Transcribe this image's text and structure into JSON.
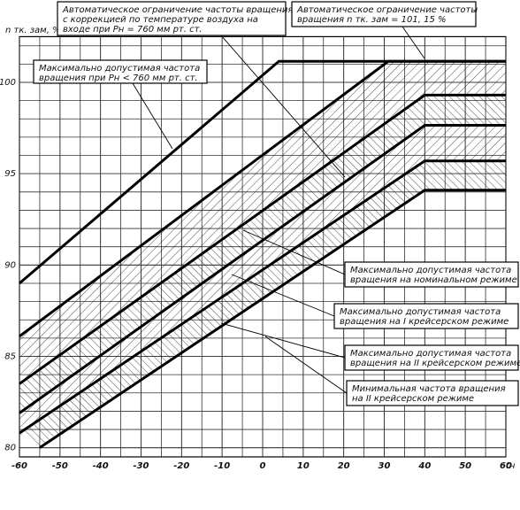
{
  "chart_data": {
    "type": "line",
    "y_label": "n тк. зам, %",
    "x_label": "tн",
    "xlim": [
      -60,
      60
    ],
    "ylim": [
      79.5,
      102.5
    ],
    "xticks": [
      -60,
      -50,
      -40,
      -30,
      -20,
      -10,
      0,
      10,
      20,
      30,
      40,
      50,
      60
    ],
    "yticks": [
      80,
      85,
      90,
      95,
      100
    ],
    "grid": true,
    "series": [
      {
        "name": "Максимально допустимая частота\nвращения при Pн < 760 мм рт. ст.",
        "color": "#000000",
        "x": [
          -60,
          4,
          60
        ],
        "values": [
          89,
          101.15,
          101.15
        ]
      },
      {
        "name": "Автоматическое ограничение частоты вращения\nс коррекцией по температуре воздуха на\nвходе при Pн = 760 мм рт. ст.",
        "color": "#000000",
        "x": [
          -60,
          31,
          60
        ],
        "values": [
          86.1,
          101.15,
          101.15
        ]
      },
      {
        "name": "Максимально допустимая частота\nвращения на номинальном режиме",
        "color": "#000000",
        "x": [
          -60,
          40,
          60
        ],
        "values": [
          83.5,
          99.3,
          99.3
        ]
      },
      {
        "name": "Максимально допустимая частота\nвращения на I крейсерском режиме",
        "color": "#000000",
        "x": [
          -60,
          40,
          60
        ],
        "values": [
          81.9,
          97.65,
          97.65
        ]
      },
      {
        "name": "Максимально допустимая частота\nвращения на II крейсерском режиме",
        "color": "#000000",
        "x": [
          -60,
          40,
          60
        ],
        "values": [
          80.8,
          95.7,
          95.7
        ]
      },
      {
        "name": "Минимальная частота вращения\nна II крейсерском режиме",
        "color": "#000000",
        "x": [
          -55,
          40,
          60
        ],
        "values": [
          80,
          94.1,
          94.1
        ]
      }
    ],
    "annotations": [
      {
        "text": "Автоматическое ограничение частоты\nвращения n тк. зам = 101, 15 %"
      }
    ]
  }
}
